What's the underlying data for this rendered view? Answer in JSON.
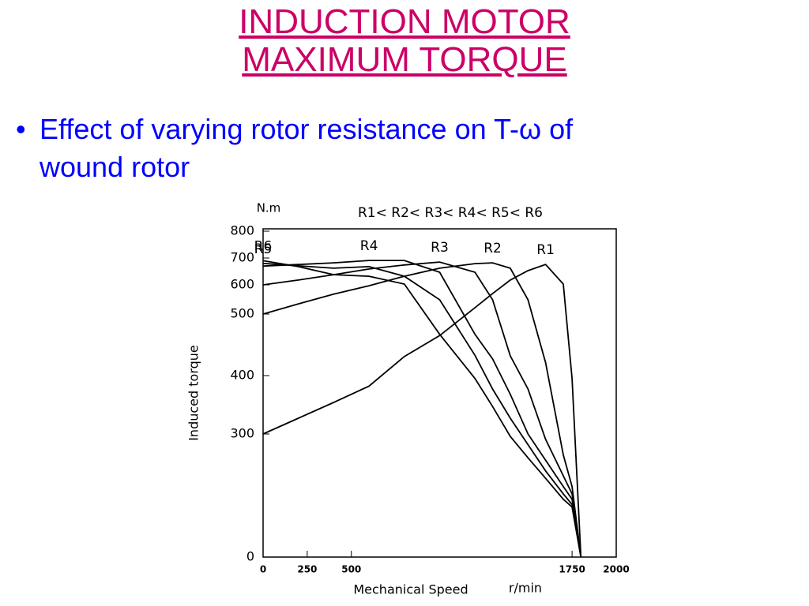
{
  "slide": {
    "title_lines": [
      "INDUCTION MOTOR",
      "MAXIMUM TORQUE"
    ],
    "bullet": [
      "Effect of varying rotor resistance on T-ω of",
      "wound rotor"
    ]
  },
  "chart_data": {
    "type": "line",
    "y_label": "Induced torque",
    "y_unit": "N.m",
    "x_label": "Mechanical Speed",
    "x_unit": "r/min",
    "annotation": "R1< R2< R3< R4< R5< R6",
    "x": [
      0,
      200,
      400,
      600,
      800,
      1000,
      1200,
      1300,
      1400,
      1500,
      1600,
      1700,
      1750,
      1800
    ],
    "series": [
      {
        "name": "R1",
        "color": "#000000",
        "values": [
          300,
          327,
          354,
          382,
          431,
          465,
          522,
          570,
          618,
          653,
          676,
          603,
          395,
          0
        ]
      },
      {
        "name": "R2",
        "color": "#000000",
        "values": [
          500,
          535,
          568,
          597,
          632,
          662,
          679,
          682,
          662,
          549,
          421,
          249,
          172,
          0
        ]
      },
      {
        "name": "R3",
        "color": "#000000",
        "values": [
          600,
          618,
          638,
          659,
          674,
          685,
          647,
          549,
          432,
          377,
          287,
          198,
          154,
          0
        ]
      },
      {
        "name": "R4",
        "color": "#000000",
        "values": [
          670,
          676,
          682,
          691,
          691,
          647,
          467,
          427,
          368,
          300,
          236,
          172,
          141,
          0
        ]
      },
      {
        "name": "R5",
        "color": "#000000",
        "values": [
          680,
          671,
          662,
          668,
          632,
          549,
          433,
          377,
          327,
          274,
          210,
          154,
          128,
          0
        ]
      },
      {
        "name": "R6",
        "color": "#000000",
        "values": [
          690,
          668,
          638,
          632,
          603,
          467,
          395,
          347,
          294,
          242,
          192,
          141,
          122,
          0
        ]
      }
    ],
    "xlim": [
      0,
      2000
    ],
    "xticks": [
      0,
      250,
      500,
      1750,
      2000
    ],
    "ylim": [
      0,
      800
    ],
    "yticks": [
      0,
      300,
      400,
      500,
      600,
      700,
      800
    ]
  }
}
